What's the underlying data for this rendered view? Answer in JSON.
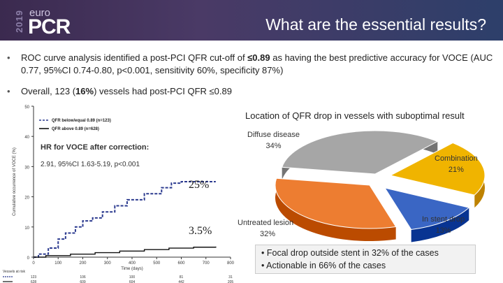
{
  "header": {
    "logo_year": "2019",
    "logo_euro": "euro",
    "logo_pcr": "PCR",
    "title": "What are the essential results?"
  },
  "bullets": [
    {
      "pre": "ROC curve analysis identified a post-PCI QFR cut-off of ",
      "bold": "≤0.89",
      "post": " as having the best predictive accuracy for VOCE (AUC 0.77, 95%CI 0.74-0.80, p<0.001, sensitivity 60%, specificity 87%)"
    },
    {
      "pre": "Overall, 123 (",
      "bold": "16%",
      "post": ") vessels had post-PCI QFR ≤0.89"
    }
  ],
  "km": {
    "ylabel": "Cumulative occurrence of VOCE (%)",
    "xlabel": "Time (days)",
    "legend_low": "QFR below/equal 0.89 (n=123)",
    "legend_high": "QFR above 0.89 (n=628)",
    "at_risk_label": "Vessels at risk",
    "at_risk_low": [
      "123",
      "106",
      "100",
      "81",
      "31"
    ],
    "at_risk_high": [
      "628",
      "609",
      "604",
      "442",
      "205"
    ],
    "hr_title": "HR for VOCE after correction:",
    "hr_detail": "2.91, 95%CI 1.63-5.19, p<0.001",
    "rate_low": "25%",
    "rate_high": "3.5%"
  },
  "pie": {
    "title": "Location of QFR drop in vessels with suboptimal result",
    "labels": {
      "diffuse": "Diffuse disease",
      "diffuse_pct": "34%",
      "combination": "Combination",
      "combination_pct": "21%",
      "stent": "In stent drop",
      "stent_pct": "13%",
      "untreated": "Untreated lesion",
      "untreated_pct": "32%"
    }
  },
  "chart_data": [
    {
      "type": "line",
      "title": "",
      "xlabel": "Time (days)",
      "ylabel": "Cumulative occurrence of VOCE (%)",
      "xlim": [
        0,
        800
      ],
      "ylim": [
        0,
        50
      ],
      "x_ticks": [
        0,
        100,
        200,
        300,
        400,
        500,
        600,
        700,
        800
      ],
      "y_ticks": [
        0,
        10,
        20,
        30,
        40,
        50
      ],
      "series": [
        {
          "name": "QFR below/equal 0.89 (n=123)",
          "color": "#2b3a8f",
          "style": "dashed",
          "x": [
            0,
            20,
            60,
            100,
            130,
            170,
            200,
            240,
            280,
            330,
            380,
            450,
            520,
            560,
            600,
            700,
            740
          ],
          "y": [
            0,
            1,
            3,
            6,
            8,
            10,
            12,
            13,
            15,
            17,
            19,
            21,
            23,
            24.5,
            25,
            25,
            25
          ]
        },
        {
          "name": "QFR above 0.89 (n=628)",
          "color": "#111111",
          "style": "solid",
          "x": [
            0,
            50,
            150,
            250,
            350,
            450,
            550,
            650,
            740
          ],
          "y": [
            0,
            0.5,
            1,
            1.5,
            2,
            2.5,
            3,
            3.3,
            3.5
          ]
        }
      ]
    },
    {
      "type": "pie",
      "title": "Location of QFR drop in vessels with suboptimal result",
      "categories": [
        "Diffuse disease",
        "Combination",
        "In stent drop",
        "Untreated lesion"
      ],
      "values": [
        34,
        21,
        13,
        32
      ],
      "colors": [
        "#a6a6a6",
        "#f0b400",
        "#3a66c4",
        "#ed7d31"
      ]
    }
  ],
  "results": {
    "line1": "Focal drop outside stent in 32% of the cases",
    "line2": "Actionable in 66% of the cases"
  }
}
